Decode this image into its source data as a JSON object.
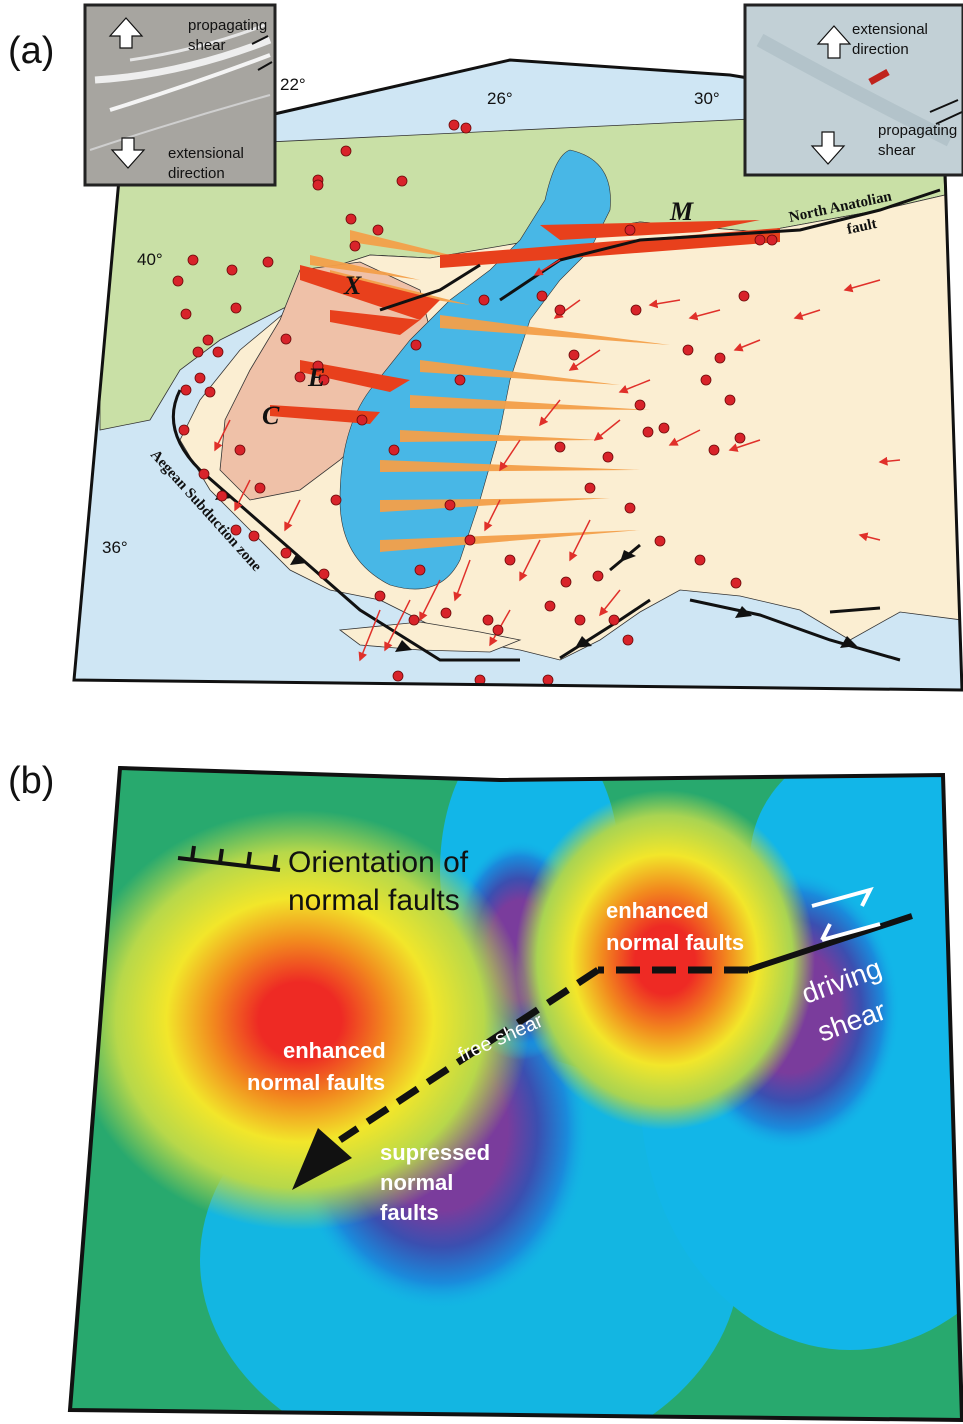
{
  "panel_a": {
    "label": "(a)",
    "lon_ticks": [
      "22°",
      "26°",
      "30°"
    ],
    "lat_ticks": [
      "40°",
      "36°"
    ],
    "fault_name": "North Anatolian",
    "fault_name_2": "fault",
    "subduction": "Aegean Subduction zone",
    "letter_m": "M",
    "letter_x": "X",
    "letter_e": "E",
    "letter_c": "C",
    "inset_left": {
      "shear_1": "propagating",
      "shear_2": "shear",
      "ext_1": "extensional",
      "ext_2": "direction"
    },
    "inset_right": {
      "ext_1": "extensional",
      "ext_2": "direction",
      "shear_1": "propagating",
      "shear_2": "shear"
    },
    "colors": {
      "sea": "#cfe6f4",
      "land_north": "#c9e0a6",
      "land_south": "#fbeed2",
      "blue_zone": "#48b7e6",
      "pink_zone": "#efc1a8",
      "fan": "#f4a04a",
      "dot": "#d8232a",
      "arrow": "#e0302a"
    }
  },
  "panel_b": {
    "label": "(b)",
    "legend_1": "Orientation of",
    "legend_2": "normal faults",
    "enhanced_right_1": "enhanced",
    "enhanced_right_2": "normal faults",
    "enhanced_left_1": "enhanced",
    "enhanced_left_2": "normal faults",
    "free_shear": "free shear",
    "driving_1": "driving",
    "driving_2": "shear",
    "supressed_1": "supressed",
    "supressed_2": "normal",
    "supressed_3": "faults",
    "colors": {
      "green": "#28a96e",
      "cyan": "#12b6e8",
      "yellow": "#f2e62a",
      "orange": "#f28a1e",
      "red": "#ee2a24",
      "purple": "#7a3c9c"
    }
  }
}
